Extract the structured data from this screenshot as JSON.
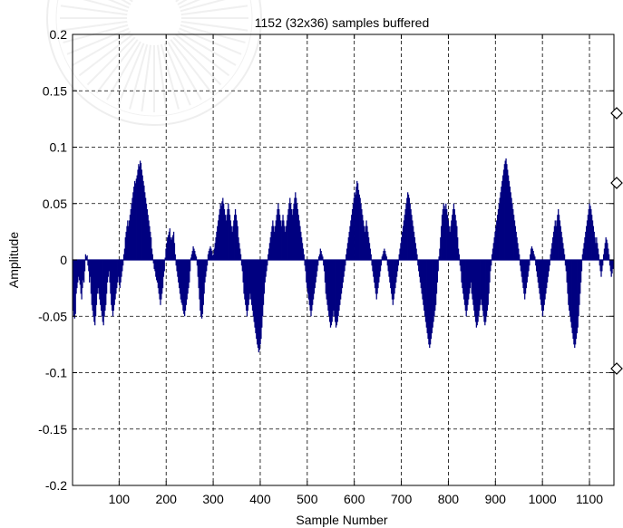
{
  "chart_data": {
    "type": "bar",
    "title": "1152 (32x36) samples buffered",
    "xlabel": "Sample Number",
    "ylabel": "Amplitude",
    "xlim": [
      1,
      1152
    ],
    "ylim": [
      -0.2,
      0.2
    ],
    "grid": true,
    "x_ticks": [
      "100",
      "200",
      "300",
      "400",
      "500",
      "600",
      "700",
      "800",
      "900",
      "1000",
      "1100"
    ],
    "x_tick_values": [
      100,
      200,
      300,
      400,
      500,
      600,
      700,
      800,
      900,
      1000,
      1100
    ],
    "y_ticks": [
      "0.2",
      "0.15",
      "0.1",
      "0.05",
      "0",
      "-0.05",
      "-0.1",
      "-0.15",
      "-0.2"
    ],
    "y_tick_values": [
      0.2,
      0.15,
      0.1,
      0.05,
      0,
      -0.05,
      -0.1,
      -0.15,
      -0.2
    ],
    "bar_color": "#000080",
    "series": [
      {
        "values": [
          -0.045,
          -0.05,
          -0.052,
          -0.048,
          -0.03,
          -0.025,
          -0.02,
          -0.015,
          -0.018,
          -0.022,
          -0.03,
          -0.035,
          -0.025,
          -0.018,
          -0.02,
          -0.01,
          0.005,
          0.003,
          0.004,
          -0.005,
          -0.01,
          -0.02,
          -0.015,
          -0.03,
          -0.04,
          -0.045,
          -0.05,
          -0.055,
          -0.058,
          -0.05,
          -0.04,
          -0.03,
          -0.025,
          -0.03,
          -0.035,
          -0.04,
          -0.045,
          -0.05,
          -0.055,
          -0.058,
          -0.05,
          -0.045,
          -0.04,
          -0.03,
          -0.02,
          -0.015,
          -0.01,
          -0.02,
          -0.03,
          -0.04,
          -0.045,
          -0.05,
          -0.045,
          -0.04,
          -0.035,
          -0.03,
          -0.025,
          -0.02,
          -0.015,
          -0.02,
          -0.025,
          -0.02,
          -0.015,
          -0.01,
          -0.005,
          0.005,
          0.01,
          0.02,
          0.025,
          0.03,
          0.035,
          0.03,
          0.035,
          0.04,
          0.045,
          0.05,
          0.055,
          0.06,
          0.065,
          0.07,
          0.068,
          0.072,
          0.075,
          0.08,
          0.085,
          0.083,
          0.088,
          0.086,
          0.08,
          0.075,
          0.07,
          0.066,
          0.06,
          0.055,
          0.05,
          0.045,
          0.04,
          0.035,
          0.03,
          0.025,
          0.02,
          0.01,
          0.005,
          -0.003,
          -0.008,
          -0.01,
          -0.015,
          -0.018,
          -0.02,
          -0.025,
          -0.03,
          -0.035,
          -0.04,
          -0.035,
          -0.03,
          -0.025,
          -0.015,
          -0.01,
          0.002,
          0.01,
          0.015,
          0.02,
          0.022,
          0.025,
          0.028,
          0.02,
          0.018,
          0.02,
          0.022,
          0.025,
          0.015,
          0.005,
          -0.005,
          -0.01,
          -0.015,
          -0.02,
          -0.025,
          -0.03,
          -0.035,
          -0.038,
          -0.04,
          -0.045,
          -0.048,
          -0.05,
          -0.045,
          -0.04,
          -0.035,
          -0.03,
          -0.025,
          -0.02,
          -0.01,
          0.002,
          0.005,
          0.008,
          0.012,
          0.01,
          0.008,
          0.005,
          0.003,
          -0.005,
          -0.015,
          -0.025,
          -0.035,
          -0.045,
          -0.05,
          -0.052,
          -0.048,
          -0.04,
          -0.03,
          -0.02,
          -0.015,
          -0.01,
          -0.005,
          0.005,
          0.008,
          0.01,
          0.012,
          0.01,
          0.008,
          0.004,
          0.005,
          0.01,
          0.015,
          0.02,
          0.025,
          0.03,
          0.035,
          0.04,
          0.045,
          0.05,
          0.048,
          0.052,
          0.055,
          0.05,
          0.045,
          0.04,
          0.035,
          0.04,
          0.045,
          0.05,
          0.045,
          0.04,
          0.035,
          0.03,
          0.025,
          0.03,
          0.035,
          0.04,
          0.045,
          0.04,
          0.035,
          0.03,
          0.02,
          0.015,
          0.01,
          0.005,
          -0.005,
          -0.01,
          -0.02,
          -0.03,
          -0.035,
          -0.04,
          -0.045,
          -0.05,
          -0.045,
          -0.04,
          -0.035,
          -0.03,
          -0.035,
          -0.04,
          -0.045,
          -0.05,
          -0.055,
          -0.06,
          -0.065,
          -0.07,
          -0.075,
          -0.078,
          -0.082,
          -0.08,
          -0.075,
          -0.07,
          -0.06,
          -0.05,
          -0.04,
          -0.03,
          -0.02,
          -0.015,
          -0.01,
          -0.005,
          0.005,
          0.01,
          0.015,
          0.02,
          0.025,
          0.03,
          0.035,
          0.03,
          0.025,
          0.03,
          0.035,
          0.04,
          0.045,
          0.05,
          0.045,
          0.04,
          0.035,
          0.03,
          0.035,
          0.04,
          0.035,
          0.03,
          0.025,
          0.03,
          0.035,
          0.04,
          0.045,
          0.05,
          0.055,
          0.05,
          0.045,
          0.04,
          0.045,
          0.05,
          0.055,
          0.06,
          0.055,
          0.05,
          0.045,
          0.04,
          0.035,
          0.03,
          0.025,
          0.02,
          0.015,
          0.01,
          0.005,
          -0.005,
          -0.01,
          -0.02,
          -0.025,
          -0.03,
          -0.035,
          -0.04,
          -0.045,
          -0.05,
          -0.045,
          -0.04,
          -0.035,
          -0.03,
          -0.025,
          -0.02,
          -0.015,
          -0.01,
          -0.005,
          0.003,
          0.005,
          0.01,
          0.008,
          0.005,
          0.003,
          -0.005,
          -0.01,
          -0.02,
          -0.03,
          -0.035,
          -0.04,
          -0.045,
          -0.05,
          -0.055,
          -0.06,
          -0.058,
          -0.055,
          -0.05,
          -0.045,
          -0.05,
          -0.055,
          -0.06,
          -0.058,
          -0.055,
          -0.05,
          -0.045,
          -0.04,
          -0.035,
          -0.03,
          -0.025,
          -0.02,
          -0.015,
          -0.01,
          -0.005,
          0.005,
          0.01,
          0.015,
          0.02,
          0.025,
          0.03,
          0.035,
          0.04,
          0.045,
          0.05,
          0.055,
          0.06,
          0.058,
          0.065,
          0.07,
          0.068,
          0.062,
          0.058,
          0.055,
          0.05,
          0.045,
          0.04,
          0.035,
          0.03,
          0.025,
          0.03,
          0.035,
          0.03,
          0.025,
          0.02,
          0.015,
          0.01,
          0.005,
          -0.005,
          -0.01,
          -0.015,
          -0.02,
          -0.025,
          -0.03,
          -0.035,
          -0.03,
          -0.025,
          -0.02,
          -0.015,
          -0.01,
          -0.005,
          0.003,
          0.005,
          0.008,
          0.01,
          0.008,
          0.005,
          0.003,
          -0.005,
          -0.01,
          -0.015,
          -0.02,
          -0.025,
          -0.03,
          -0.035,
          -0.04,
          -0.035,
          -0.03,
          -0.025,
          -0.02,
          -0.015,
          -0.01,
          -0.005,
          0.005,
          0.01,
          0.015,
          0.02,
          0.025,
          0.03,
          0.035,
          0.04,
          0.045,
          0.05,
          0.055,
          0.06,
          0.058,
          0.055,
          0.05,
          0.045,
          0.04,
          0.035,
          0.03,
          0.025,
          0.02,
          0.015,
          0.01,
          0.005,
          -0.005,
          -0.01,
          -0.015,
          -0.02,
          -0.025,
          -0.03,
          -0.035,
          -0.04,
          -0.045,
          -0.05,
          -0.055,
          -0.06,
          -0.065,
          -0.07,
          -0.075,
          -0.078,
          -0.075,
          -0.07,
          -0.065,
          -0.06,
          -0.055,
          -0.05,
          -0.045,
          -0.04,
          -0.03,
          -0.02,
          -0.01,
          0.003,
          0.01,
          0.02,
          0.03,
          0.04,
          0.045,
          0.05,
          0.048,
          0.045,
          0.05,
          0.045,
          0.04,
          0.035,
          0.03,
          0.025,
          0.03,
          0.035,
          0.04,
          0.045,
          0.05,
          0.045,
          0.04,
          0.035,
          0.03,
          0.02,
          0.01,
          0.005,
          -0.005,
          -0.01,
          -0.02,
          -0.025,
          -0.03,
          -0.035,
          -0.04,
          -0.045,
          -0.05,
          -0.045,
          -0.04,
          -0.035,
          -0.03,
          -0.025,
          -0.02,
          -0.03,
          -0.035,
          -0.04,
          -0.045,
          -0.05,
          -0.055,
          -0.06,
          -0.058,
          -0.055,
          -0.05,
          -0.045,
          -0.04,
          -0.035,
          -0.04,
          -0.045,
          -0.05,
          -0.055,
          -0.058,
          -0.055,
          -0.05,
          -0.045,
          -0.04,
          -0.03,
          -0.02,
          -0.01,
          -0.005,
          0.005,
          0.01,
          0.015,
          0.02,
          0.025,
          0.03,
          0.035,
          0.04,
          0.045,
          0.05,
          0.055,
          0.06,
          0.065,
          0.07,
          0.075,
          0.08,
          0.085,
          0.088,
          0.09,
          0.085,
          0.08,
          0.075,
          0.07,
          0.065,
          0.06,
          0.055,
          0.05,
          0.045,
          0.04,
          0.035,
          0.03,
          0.025,
          0.02,
          0.015,
          0.01,
          0.005,
          -0.005,
          -0.01,
          -0.015,
          -0.02,
          -0.025,
          -0.03,
          -0.035,
          -0.03,
          -0.025,
          -0.02,
          -0.015,
          -0.01,
          -0.005,
          0.005,
          0.01,
          0.012,
          0.01,
          0.008,
          0.005,
          0.003,
          -0.005,
          -0.01,
          -0.015,
          -0.02,
          -0.025,
          -0.03,
          -0.035,
          -0.04,
          -0.045,
          -0.05,
          -0.045,
          -0.04,
          -0.035,
          -0.03,
          -0.025,
          -0.02,
          -0.015,
          -0.01,
          -0.005,
          0.005,
          0.01,
          0.015,
          0.02,
          0.025,
          0.03,
          0.035,
          0.03,
          0.035,
          0.04,
          0.045,
          0.04,
          0.035,
          0.03,
          0.025,
          0.02,
          0.015,
          0.01,
          0.005,
          -0.005,
          -0.01,
          -0.02,
          -0.03,
          -0.04,
          -0.045,
          -0.05,
          -0.055,
          -0.06,
          -0.065,
          -0.07,
          -0.075,
          -0.078,
          -0.075,
          -0.07,
          -0.065,
          -0.06,
          -0.05,
          -0.04,
          -0.03,
          -0.02,
          -0.01,
          0.005,
          0.01,
          0.015,
          0.02,
          0.025,
          0.03,
          0.035,
          0.04,
          0.045,
          0.05,
          0.048,
          0.045,
          0.04,
          0.035,
          0.03,
          0.025,
          0.02,
          0.015,
          0.02,
          0.015,
          0.01,
          0.005,
          -0.005,
          -0.01,
          -0.015,
          -0.01,
          -0.005,
          0.005,
          0.01,
          0.015,
          0.02,
          0.018,
          0.015,
          0.01,
          0.005,
          -0.005,
          -0.01,
          -0.015,
          -0.012,
          -0.008,
          -0.005
        ]
      }
    ]
  }
}
